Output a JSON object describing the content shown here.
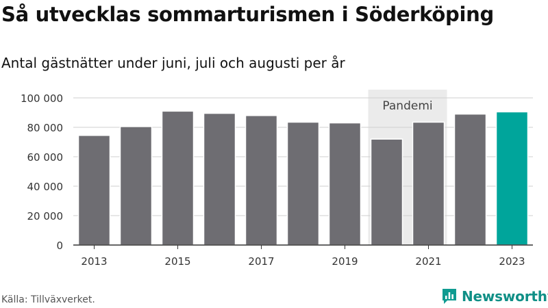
{
  "title": "Så utvecklas sommarturismen i Söderköping",
  "subtitle": "Antal gästnätter under juni, juli och augusti per år",
  "source": "Källa: Tillväxverket.",
  "brand": {
    "name": "Newsworthy",
    "icon": "newsworthy-logo-icon",
    "color": "#0f9b91"
  },
  "chart_data": {
    "type": "bar",
    "categories": [
      "2013",
      "2014",
      "2015",
      "2016",
      "2017",
      "2018",
      "2019",
      "2020",
      "2021",
      "2022",
      "2023"
    ],
    "values": [
      74500,
      80500,
      91000,
      89500,
      88000,
      83500,
      83000,
      72000,
      83500,
      89000,
      90500
    ],
    "highlight_index": 10,
    "colors": {
      "default": "#6e6d72",
      "highlight": "#00a59b",
      "band": "#ebebeb"
    },
    "ylim": [
      0,
      100000
    ],
    "yticks": [
      0,
      20000,
      40000,
      60000,
      80000,
      100000
    ],
    "ytick_labels": [
      "0",
      "20 000",
      "40 000",
      "60 000",
      "80 000",
      "100 000"
    ],
    "xtick_labels": [
      "2013",
      "2015",
      "2017",
      "2019",
      "2021",
      "2023"
    ],
    "annotation": {
      "label": "Pandemi",
      "from": "2020",
      "to": "2021"
    },
    "grid": true
  }
}
